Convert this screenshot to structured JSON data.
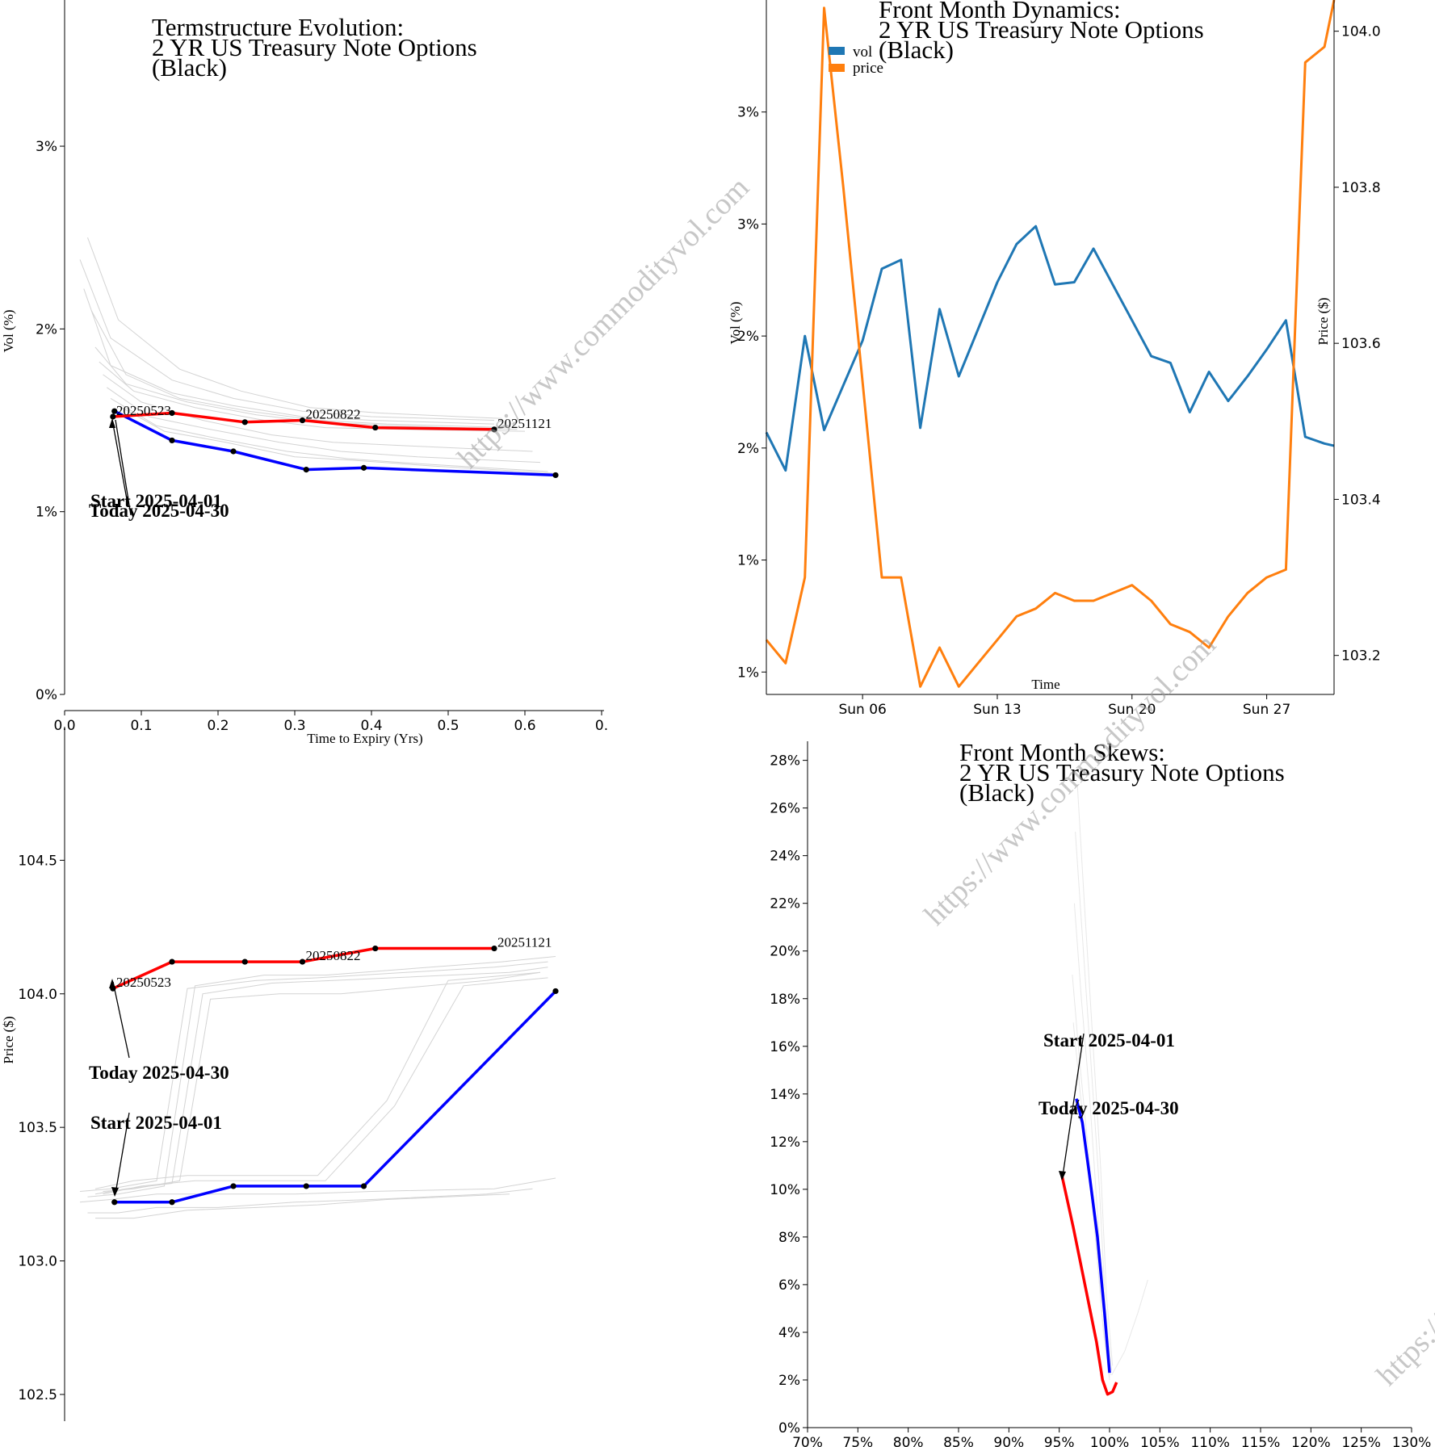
{
  "watermark": "https://www.commodityvol.com",
  "chart_data": [
    {
      "id": "termstructure",
      "type": "line",
      "title_lines": [
        "Termstructure Evolution:",
        "2 YR US Treasury Note Options",
        "(Black)"
      ],
      "xlabel": "Time to Expiry (Yrs)",
      "ylabel": "Vol (%)",
      "xlim": [
        0,
        0.7
      ],
      "ylim": [
        0,
        3.8
      ],
      "xticks": [
        0,
        0.1,
        0.2,
        0.3,
        0.4,
        0.5,
        0.6,
        0.7
      ],
      "xtick_labels": [
        "0.0",
        "0.1",
        "0.2",
        "0.3",
        "0.4",
        "0.5",
        "0.6",
        "0."
      ],
      "yticks": [
        0,
        1,
        2,
        3
      ],
      "ytick_labels": [
        "0%",
        "1%",
        "2%",
        "3%"
      ],
      "series": [
        {
          "color": "#0000ff",
          "x": [
            0.065,
            0.14,
            0.22,
            0.315,
            0.39,
            0.64
          ],
          "y": [
            1.55,
            1.39,
            1.33,
            1.23,
            1.24,
            1.2
          ]
        },
        {
          "color": "#ff0000",
          "x": [
            0.063,
            0.14,
            0.235,
            0.31,
            0.405,
            0.56
          ],
          "y": [
            1.52,
            1.54,
            1.49,
            1.5,
            1.46,
            1.45
          ]
        }
      ],
      "history": [
        {
          "x": [
            0.02,
            0.06,
            0.14,
            0.22,
            0.31,
            0.4,
            0.56
          ],
          "y": [
            2.38,
            1.95,
            1.72,
            1.62,
            1.55,
            1.52,
            1.5
          ]
        },
        {
          "x": [
            0.025,
            0.06,
            0.14,
            0.22,
            0.31,
            0.4,
            0.56
          ],
          "y": [
            2.22,
            1.8,
            1.65,
            1.58,
            1.52,
            1.5,
            1.48
          ]
        },
        {
          "x": [
            0.03,
            0.07,
            0.15,
            0.23,
            0.32,
            0.41,
            0.57
          ],
          "y": [
            2.5,
            2.05,
            1.78,
            1.66,
            1.57,
            1.54,
            1.51
          ]
        },
        {
          "x": [
            0.035,
            0.08,
            0.15,
            0.24,
            0.33,
            0.42,
            0.58
          ],
          "y": [
            2.1,
            1.75,
            1.62,
            1.55,
            1.5,
            1.48,
            1.46
          ]
        },
        {
          "x": [
            0.04,
            0.08,
            0.16,
            0.25,
            0.33,
            0.43,
            0.59
          ],
          "y": [
            1.9,
            1.7,
            1.6,
            1.53,
            1.49,
            1.47,
            1.45
          ]
        },
        {
          "x": [
            0.045,
            0.09,
            0.17,
            0.26,
            0.34,
            0.44,
            0.6
          ],
          "y": [
            1.82,
            1.66,
            1.57,
            1.5,
            1.46,
            1.45,
            1.44
          ]
        },
        {
          "x": [
            0.05,
            0.1,
            0.18,
            0.27,
            0.35,
            0.45,
            0.61
          ],
          "y": [
            1.75,
            1.6,
            1.5,
            1.42,
            1.38,
            1.36,
            1.33
          ]
        },
        {
          "x": [
            0.055,
            0.11,
            0.19,
            0.28,
            0.36,
            0.46,
            0.62
          ],
          "y": [
            1.68,
            1.52,
            1.45,
            1.38,
            1.33,
            1.3,
            1.27
          ]
        },
        {
          "x": [
            0.06,
            0.12,
            0.2,
            0.29,
            0.37,
            0.47,
            0.63
          ],
          "y": [
            1.62,
            1.47,
            1.4,
            1.33,
            1.29,
            1.26,
            1.22
          ]
        },
        {
          "x": [
            0.07,
            0.13,
            0.21,
            0.3,
            0.38,
            0.48,
            0.64
          ],
          "y": [
            1.58,
            1.44,
            1.38,
            1.3,
            1.28,
            1.25,
            1.21
          ]
        }
      ],
      "expiry_labels": [
        "20250523",
        "20250822",
        "20251121"
      ],
      "annotations": [
        "Start 2025-04-01",
        "Today 2025-04-30"
      ]
    },
    {
      "id": "dynamics",
      "type": "line",
      "title_lines": [
        "Front Month Dynamics:",
        "2 YR US Treasury Note Options",
        "(Black)"
      ],
      "xlabel": "Time",
      "ylabel": "Vol (%)",
      "ylabel_right": "Price ($)",
      "xlim": [
        1,
        30.5
      ],
      "ylim": [
        0.9,
        4.0
      ],
      "ylim_right": [
        103.15,
        104.04
      ],
      "xticks": [
        6,
        13,
        20,
        27
      ],
      "xtick_labels": [
        "Sun 06",
        "Sun 13",
        "Sun 20",
        "Sun 27"
      ],
      "yticks": [
        1,
        1.5,
        2,
        2.5,
        3,
        3.5
      ],
      "ytick_labels": [
        "1%",
        "1%",
        "2%",
        "2%",
        "3%",
        "3%"
      ],
      "yticks_right": [
        103.2,
        103.4,
        103.6,
        103.8,
        104.0
      ],
      "ytick_labels_right": [
        "103.2",
        "103.4",
        "103.6",
        "103.8",
        "104.0"
      ],
      "legend": [
        "vol",
        "price"
      ],
      "series": [
        {
          "name": "vol",
          "color": "#1f77b4",
          "x": [
            1,
            2,
            3,
            4,
            5,
            6,
            7,
            8,
            9,
            10,
            11,
            12,
            13,
            14,
            15,
            16,
            17,
            18,
            19,
            20,
            21,
            22,
            23,
            24,
            25,
            26,
            27,
            28,
            29,
            30,
            30.5
          ],
          "y": [
            2.07,
            1.9,
            2.5,
            2.08,
            2.28,
            2.48,
            2.8,
            2.84,
            2.09,
            2.62,
            2.32,
            2.53,
            2.74,
            2.91,
            2.99,
            2.73,
            2.74,
            2.89,
            2.73,
            2.57,
            2.41,
            2.38,
            2.16,
            2.34,
            2.21,
            2.32,
            2.44,
            2.57,
            2.05,
            2.02,
            2.01
          ]
        },
        {
          "name": "price",
          "color": "#ff7f0e",
          "x": [
            1,
            2,
            3,
            4,
            5,
            6,
            7,
            8,
            9,
            10,
            11,
            12,
            13,
            14,
            15,
            16,
            17,
            18,
            19,
            20,
            21,
            22,
            23,
            24,
            25,
            26,
            27,
            28,
            29,
            30,
            30.5
          ],
          "y": [
            103.22,
            103.19,
            103.3,
            104.03,
            103.8,
            103.55,
            103.3,
            103.3,
            103.16,
            103.21,
            103.16,
            103.19,
            103.22,
            103.25,
            103.26,
            103.28,
            103.27,
            103.27,
            103.28,
            103.29,
            103.27,
            103.24,
            103.23,
            103.21,
            103.25,
            103.28,
            103.3,
            103.31,
            103.96,
            103.98,
            104.04
          ]
        }
      ]
    },
    {
      "id": "price-termstructure",
      "type": "line",
      "xlabel": "",
      "ylabel": "Price ($)",
      "xlim": [
        0,
        0.7
      ],
      "ylim": [
        102.4,
        105.0
      ],
      "yticks": [
        102.5,
        103.0,
        103.5,
        104.0,
        104.5
      ],
      "ytick_labels": [
        "102.5",
        "103.0",
        "103.5",
        "104.0",
        "104.5"
      ],
      "series": [
        {
          "color": "#0000ff",
          "x": [
            0.065,
            0.14,
            0.22,
            0.315,
            0.39,
            0.64
          ],
          "y": [
            103.22,
            103.22,
            103.28,
            103.28,
            103.28,
            104.01
          ]
        },
        {
          "color": "#ff0000",
          "x": [
            0.063,
            0.14,
            0.235,
            0.31,
            0.405,
            0.56
          ],
          "y": [
            104.02,
            104.12,
            104.12,
            104.12,
            104.17,
            104.17
          ]
        }
      ],
      "history": [
        {
          "x": [
            0.02,
            0.06,
            0.12,
            0.16,
            0.25,
            0.33,
            0.56,
            0.63
          ],
          "y": [
            103.26,
            103.27,
            103.3,
            104.02,
            104.05,
            104.06,
            104.1,
            104.12
          ]
        },
        {
          "x": [
            0.03,
            0.07,
            0.13,
            0.17,
            0.26,
            0.34,
            0.57,
            0.64
          ],
          "y": [
            103.24,
            103.25,
            103.28,
            104.03,
            104.07,
            104.07,
            104.12,
            104.14
          ]
        },
        {
          "x": [
            0.04,
            0.08,
            0.14,
            0.18,
            0.27,
            0.35,
            0.58,
            0.63
          ],
          "y": [
            103.25,
            103.27,
            103.29,
            104.0,
            104.04,
            104.05,
            104.08,
            104.1
          ]
        },
        {
          "x": [
            0.05,
            0.09,
            0.15,
            0.19,
            0.28,
            0.36,
            0.55,
            0.62
          ],
          "y": [
            103.26,
            103.27,
            103.3,
            103.98,
            104.0,
            104.0,
            104.05,
            104.08
          ]
        },
        {
          "x": [
            0.04,
            0.09,
            0.16,
            0.21,
            0.33,
            0.42,
            0.5,
            0.62
          ],
          "y": [
            103.27,
            103.3,
            103.32,
            103.32,
            103.32,
            103.6,
            104.05,
            104.08
          ]
        },
        {
          "x": [
            0.05,
            0.1,
            0.17,
            0.22,
            0.34,
            0.43,
            0.52,
            0.63
          ],
          "y": [
            103.25,
            103.28,
            103.3,
            103.3,
            103.3,
            103.58,
            104.03,
            104.06
          ]
        },
        {
          "x": [
            0.02,
            0.06,
            0.12,
            0.2,
            0.3,
            0.4,
            0.56,
            0.64
          ],
          "y": [
            103.22,
            103.23,
            103.25,
            103.25,
            103.25,
            103.26,
            103.27,
            103.31
          ]
        },
        {
          "x": [
            0.03,
            0.07,
            0.12,
            0.2,
            0.3,
            0.4,
            0.55,
            0.61
          ],
          "y": [
            103.18,
            103.18,
            103.2,
            103.2,
            103.22,
            103.23,
            103.25,
            103.27
          ]
        },
        {
          "x": [
            0.04,
            0.09,
            0.16,
            0.25,
            0.33,
            0.42,
            0.58
          ],
          "y": [
            103.16,
            103.16,
            103.19,
            103.2,
            103.21,
            103.23,
            103.25
          ]
        }
      ],
      "expiry_labels": [
        "20250523",
        "20250822",
        "20251121"
      ],
      "annotations": [
        "Today 2025-04-30",
        "Start 2025-04-01"
      ]
    },
    {
      "id": "skews",
      "type": "line",
      "title_lines": [
        "Front Month Skews:",
        "2 YR US Treasury Note Options",
        "(Black)"
      ],
      "xlabel": "",
      "ylabel": "",
      "xlim": [
        70,
        130
      ],
      "ylim": [
        0,
        28.8
      ],
      "xticks": [
        70,
        75,
        80,
        85,
        90,
        95,
        100,
        105,
        110,
        115,
        120,
        125,
        130
      ],
      "xtick_labels": [
        "70%",
        "75%",
        "80%",
        "85%",
        "90%",
        "95%",
        "100%",
        "105%",
        "110%",
        "115%",
        "120%",
        "125%",
        "130%"
      ],
      "yticks": [
        0,
        2,
        4,
        6,
        8,
        10,
        12,
        14,
        16,
        18,
        20,
        22,
        24,
        26,
        28
      ],
      "ytick_labels": [
        "0%",
        "2%",
        "4%",
        "6%",
        "8%",
        "10%",
        "12%",
        "14%",
        "16%",
        "18%",
        "20%",
        "22%",
        "24%",
        "26%",
        "28%"
      ],
      "series": [
        {
          "color": "#0000ff",
          "x": [
            96.7,
            97.3,
            98.0,
            98.8,
            99.5,
            100.0
          ],
          "y": [
            13.8,
            12.8,
            10.6,
            8.0,
            4.8,
            2.3
          ]
        },
        {
          "color": "#ff0000",
          "x": [
            95.2,
            96.4,
            97.6,
            98.7,
            99.3,
            99.8,
            100.3,
            100.7
          ],
          "y": [
            10.7,
            8.4,
            5.9,
            3.6,
            2.0,
            1.4,
            1.5,
            1.9
          ]
        }
      ],
      "history": [
        {
          "x": [
            96.5,
            97.2,
            98.0,
            98.8,
            99.5,
            100.1
          ],
          "y": [
            22.0,
            18.0,
            14.0,
            9.0,
            4.5,
            2.2
          ]
        },
        {
          "x": [
            96.6,
            97.4,
            98.2,
            99.0,
            99.6,
            100.2
          ],
          "y": [
            25.0,
            20.0,
            15.0,
            10.0,
            5.0,
            2.4
          ]
        },
        {
          "x": [
            96.3,
            97.0,
            97.8,
            98.6,
            99.4,
            100.0
          ],
          "y": [
            19.0,
            15.5,
            12.0,
            8.0,
            4.0,
            2.0
          ]
        },
        {
          "x": [
            96.8,
            97.5,
            98.3,
            99.1,
            99.7,
            100.3
          ],
          "y": [
            27.0,
            22.0,
            16.5,
            11.0,
            5.5,
            2.6
          ]
        },
        {
          "x": [
            96.4,
            97.1,
            97.9,
            98.7,
            99.4,
            100.0
          ],
          "y": [
            17.0,
            14.0,
            11.0,
            7.5,
            4.0,
            2.1
          ]
        },
        {
          "x": [
            100.2,
            101.5,
            102.8,
            103.8
          ],
          "y": [
            2.2,
            3.2,
            4.8,
            6.2
          ]
        }
      ],
      "annotations": [
        "Start 2025-04-01",
        "Today 2025-04-30"
      ]
    }
  ]
}
